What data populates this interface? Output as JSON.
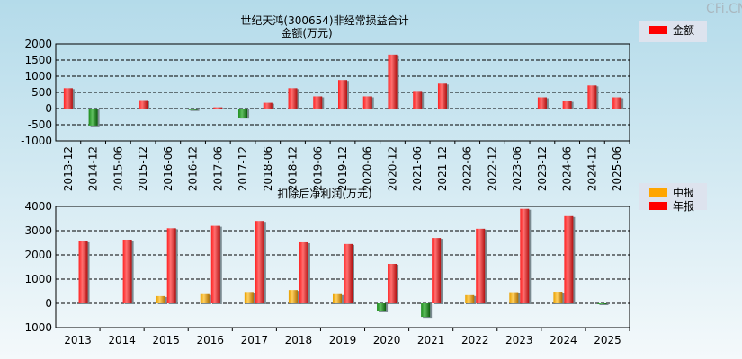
{
  "watermark": "CFi.CN",
  "chart_data": [
    {
      "type": "bar",
      "title": "世纪天鸿(300654)非经常损益合计",
      "subtitle": "金额(万元)",
      "ylim": [
        -1000,
        2000
      ],
      "yticks": [
        2000,
        1500,
        1000,
        500,
        0,
        -500,
        -1000
      ],
      "grid": true,
      "legend_position": "top-right",
      "categories": [
        "2013-12",
        "2014-12",
        "2015-06",
        "2015-12",
        "2016-06",
        "2016-12",
        "2017-06",
        "2017-12",
        "2018-06",
        "2018-12",
        "2019-06",
        "2019-12",
        "2020-06",
        "2020-12",
        "2021-06",
        "2021-12",
        "2022-06",
        "2022-12",
        "2023-06",
        "2023-12",
        "2024-06",
        "2024-12",
        "2025-06"
      ],
      "series": [
        {
          "name": "金额",
          "color": "#ff0000",
          "values": [
            630,
            -525,
            null,
            263,
            null,
            -47,
            38,
            -282,
            178,
            630,
            376,
            883,
            376,
            1671,
            545,
            770,
            null,
            null,
            null,
            347,
            235,
            714,
            347
          ]
        }
      ]
    },
    {
      "type": "bar",
      "title": "扣除后净利润(万元)",
      "ylim": [
        -1000,
        4000
      ],
      "yticks": [
        4000,
        3000,
        2000,
        1000,
        0,
        -1000
      ],
      "grid": true,
      "legend_position": "top-right",
      "categories": [
        "2013",
        "2014",
        "2015",
        "2016",
        "2017",
        "2018",
        "2019",
        "2020",
        "2021",
        "2022",
        "2023",
        "2024",
        "2025"
      ],
      "series": [
        {
          "name": "中报",
          "color": "#ffa500",
          "values": [
            null,
            null,
            300,
            380,
            470,
            550,
            380,
            -330,
            -560,
            340,
            460,
            480,
            -20
          ]
        },
        {
          "name": "年报",
          "color": "#ff0000",
          "values": [
            2560,
            2630,
            3100,
            3200,
            3400,
            2520,
            2450,
            1630,
            2700,
            3080,
            3900,
            3600,
            null
          ]
        }
      ]
    }
  ]
}
